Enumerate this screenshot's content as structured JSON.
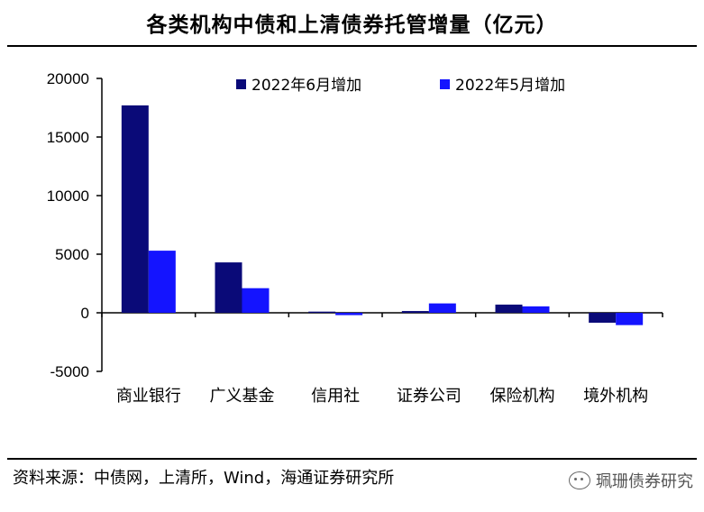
{
  "title": "各类机构中债和上清债券托管增量（亿元）",
  "source": "资料来源：中债网，上清所，Wind，海通证券研究所",
  "watermark": "珮珊债券研究",
  "chart_data": {
    "type": "bar",
    "categories": [
      "商业银行",
      "广义基金",
      "信用社",
      "证券公司",
      "保险机构",
      "境外机构"
    ],
    "series": [
      {
        "name": "2022年6月增加",
        "color": "#0a0a78",
        "values": [
          17700,
          4300,
          100,
          150,
          700,
          -850
        ]
      },
      {
        "name": "2022年5月增加",
        "color": "#1414ff",
        "values": [
          5300,
          2100,
          -200,
          800,
          550,
          -1050
        ]
      }
    ],
    "ylim": [
      -5000,
      20000
    ],
    "yticks": [
      -5000,
      0,
      5000,
      10000,
      15000,
      20000
    ],
    "ytick_labels": [
      "-5000",
      "0",
      "5000",
      "10000",
      "15000",
      "20000"
    ],
    "legend_position": "top",
    "grid": false
  }
}
